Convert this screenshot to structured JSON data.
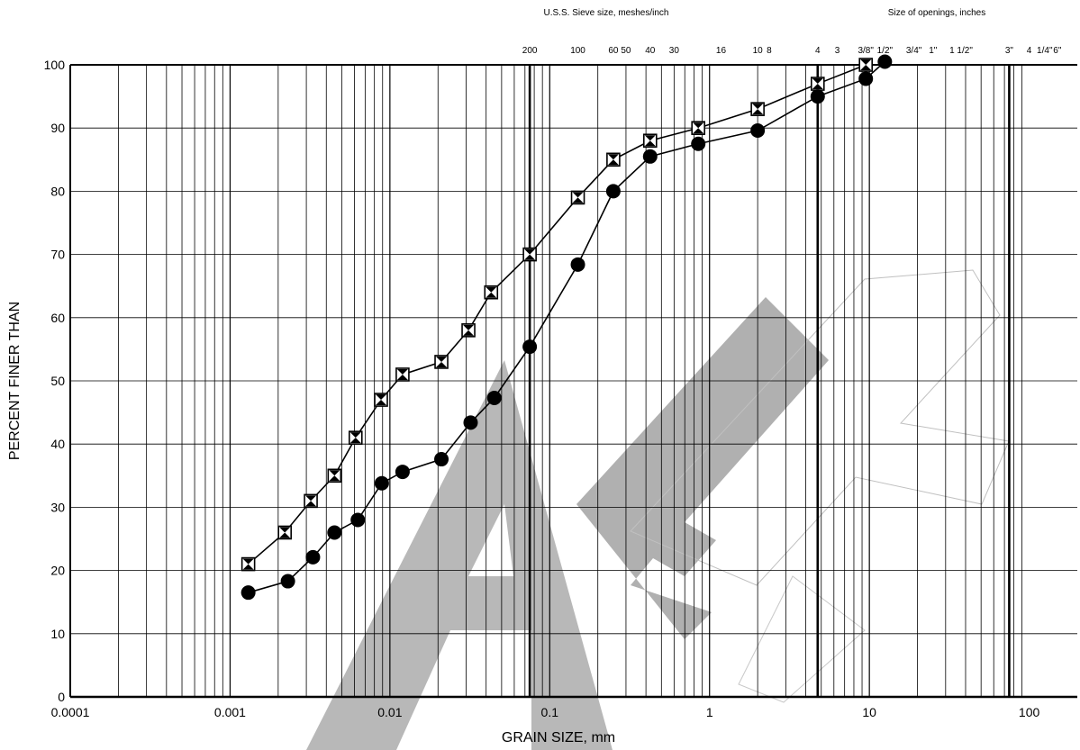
{
  "chart_data": {
    "type": "scatter",
    "title": "",
    "xlabel": "GRAIN SIZE, mm",
    "ylabel": "PERCENT FINER THAN",
    "x_scale": "log",
    "xlim": [
      0.0001,
      200
    ],
    "ylim": [
      0,
      100
    ],
    "grid": true,
    "x_tick_labels": [
      "0.0001",
      "0.001",
      "0.01",
      "0.1",
      "1",
      "10",
      "100"
    ],
    "y_ticks": [
      0,
      10,
      20,
      30,
      40,
      50,
      60,
      70,
      80,
      90,
      100
    ],
    "top_axis": {
      "sieve_title": "U.S.S. Sieve size, meshes/inch",
      "sieve_labels": [
        {
          "text": "200",
          "size_mm": 0.075
        },
        {
          "text": "100",
          "size_mm": 0.15
        },
        {
          "text": "60",
          "size_mm": 0.25
        },
        {
          "text": "50",
          "size_mm": 0.3
        },
        {
          "text": "40",
          "size_mm": 0.425
        },
        {
          "text": "30",
          "size_mm": 0.6
        },
        {
          "text": "16",
          "size_mm": 1.18
        },
        {
          "text": "10",
          "size_mm": 2.0
        },
        {
          "text": "8",
          "size_mm": 2.36
        },
        {
          "text": "4",
          "size_mm": 4.75
        },
        {
          "text": "3",
          "size_mm": 6.3
        }
      ],
      "opening_title": "Size of openings, inches",
      "opening_labels": [
        {
          "text": "3/8\"",
          "size_mm": 9.5
        },
        {
          "text": "1/2\"",
          "size_mm": 12.5
        },
        {
          "text": "3/4\"",
          "size_mm": 19
        },
        {
          "text": "1\"",
          "size_mm": 25
        },
        {
          "text": "1 1/2\"",
          "size_mm": 37.5
        },
        {
          "text": "3\"",
          "size_mm": 75
        },
        {
          "text": "4",
          "size_mm": 100
        },
        {
          "text": "1/4\"",
          "size_mm": 125
        },
        {
          "text": "6\"",
          "size_mm": 150
        }
      ],
      "emphasized_sieves_mm": [
        0.075,
        4.75,
        75
      ]
    },
    "series": [
      {
        "marker": "square-hourglass",
        "points": [
          {
            "x": 0.0013,
            "y": 21
          },
          {
            "x": 0.0022,
            "y": 26
          },
          {
            "x": 0.0032,
            "y": 31
          },
          {
            "x": 0.0045,
            "y": 35
          },
          {
            "x": 0.0061,
            "y": 41
          },
          {
            "x": 0.0088,
            "y": 47
          },
          {
            "x": 0.012,
            "y": 51
          },
          {
            "x": 0.021,
            "y": 53
          },
          {
            "x": 0.031,
            "y": 58
          },
          {
            "x": 0.043,
            "y": 64
          },
          {
            "x": 0.075,
            "y": 70
          },
          {
            "x": 0.15,
            "y": 79
          },
          {
            "x": 0.25,
            "y": 85
          },
          {
            "x": 0.425,
            "y": 88
          },
          {
            "x": 0.85,
            "y": 90
          },
          {
            "x": 2.0,
            "y": 93
          },
          {
            "x": 4.75,
            "y": 97
          },
          {
            "x": 9.5,
            "y": 100
          }
        ]
      },
      {
        "marker": "circle",
        "points": [
          {
            "x": 0.0013,
            "y": 16.5
          },
          {
            "x": 0.0023,
            "y": 18.3
          },
          {
            "x": 0.0033,
            "y": 22.1
          },
          {
            "x": 0.0045,
            "y": 26
          },
          {
            "x": 0.0063,
            "y": 28
          },
          {
            "x": 0.0089,
            "y": 33.8
          },
          {
            "x": 0.012,
            "y": 35.6
          },
          {
            "x": 0.021,
            "y": 37.6
          },
          {
            "x": 0.032,
            "y": 43.4
          },
          {
            "x": 0.045,
            "y": 47.3
          },
          {
            "x": 0.075,
            "y": 55.4
          },
          {
            "x": 0.15,
            "y": 68.4
          },
          {
            "x": 0.25,
            "y": 80
          },
          {
            "x": 0.425,
            "y": 85.5
          },
          {
            "x": 0.85,
            "y": 87.5
          },
          {
            "x": 2.0,
            "y": 89.6
          },
          {
            "x": 4.75,
            "y": 95
          },
          {
            "x": 9.5,
            "y": 97.8
          },
          {
            "x": 12.5,
            "y": 100.5
          }
        ]
      }
    ],
    "watermark": "DRAFT"
  }
}
